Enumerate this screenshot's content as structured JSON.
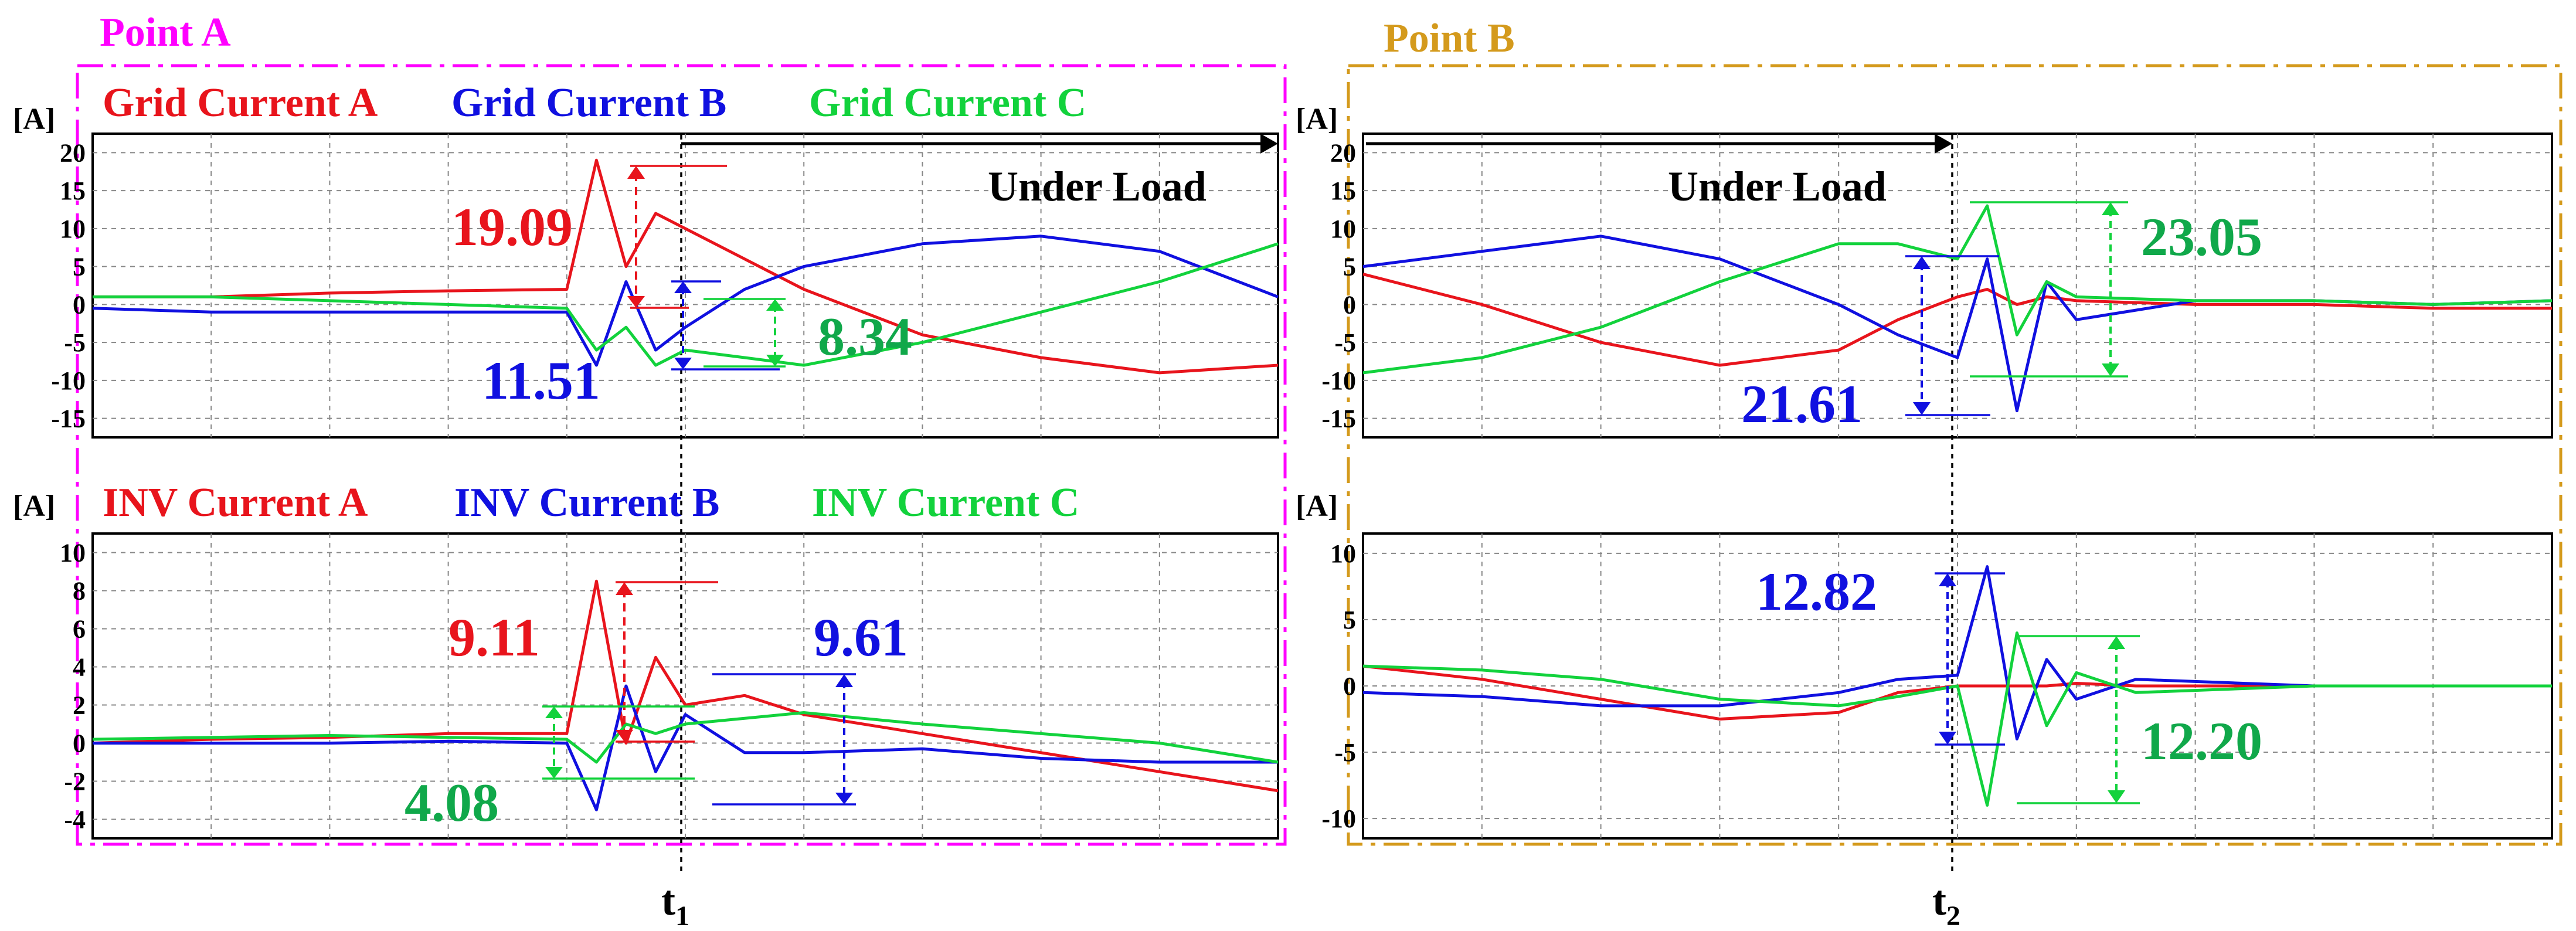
{
  "figure": {
    "t1": "t",
    "t1_sub": "1",
    "t2": "t",
    "t2_sub": "2"
  },
  "colors": {
    "phase_a": "#e8141c",
    "phase_b": "#1010e0",
    "phase_c": "#12d23c",
    "box_a": "#ff00ff",
    "box_b": "#d49a1c",
    "label_a": "#ff00ff",
    "label_b": "#d49a1c",
    "annot_c": "#10a84a"
  },
  "panels": [
    {
      "id": "A",
      "title": "Point A",
      "grid": {
        "unit": "[A]",
        "legend": [
          "Grid Current A",
          "Grid Current B",
          "Grid Current C"
        ],
        "yticks": [
          "20",
          "15",
          "10",
          "5",
          "0",
          "-5",
          "-10",
          "-15"
        ],
        "annotation": "Under Load",
        "values": [
          "19.09",
          "11.51",
          "8.34"
        ]
      },
      "inv": {
        "unit": "[A]",
        "legend": [
          "INV Current A",
          "INV Current B",
          "INV Current C"
        ],
        "yticks": [
          "10",
          "8",
          "6",
          "4",
          "2",
          "0",
          "-2",
          "-4"
        ],
        "values": [
          "9.11",
          "9.61",
          "4.08"
        ]
      }
    },
    {
      "id": "B",
      "title": "Point B",
      "grid": {
        "unit": "[A]",
        "yticks": [
          "20",
          "15",
          "10",
          "5",
          "0",
          "-5",
          "-10",
          "-15"
        ],
        "annotation": "Under Load",
        "values": [
          "23.05",
          "21.61"
        ]
      },
      "inv": {
        "unit": "[A]",
        "yticks": [
          "10",
          "5",
          "0",
          "-5",
          "-10"
        ],
        "values": [
          "12.82",
          "12.20"
        ]
      }
    }
  ],
  "chart_data": [
    {
      "type": "line",
      "panel": "Point A - grid",
      "ylabel": "[A]",
      "ylim": [
        -17.5,
        22.5
      ],
      "yticks": [
        20,
        15,
        10,
        5,
        0,
        -5,
        -10,
        -15
      ],
      "grid": true,
      "legend_position": "top",
      "annotations": [
        "Under Load",
        "19.09",
        "11.51",
        "8.34"
      ],
      "x": [
        0,
        1,
        2,
        3,
        4,
        4.25,
        4.5,
        4.75,
        5,
        5.5,
        6,
        7,
        8,
        9,
        10
      ],
      "series": [
        {
          "name": "Grid Current A",
          "values": [
            1,
            1,
            1.5,
            1.8,
            2,
            19,
            5,
            12,
            10,
            6,
            2,
            -4,
            -7,
            -9,
            -8
          ]
        },
        {
          "name": "Grid Current B",
          "values": [
            -0.5,
            -1,
            -1,
            -1,
            -1,
            -8,
            3,
            -6,
            -3,
            2,
            5,
            8,
            9,
            7,
            1
          ]
        },
        {
          "name": "Grid Current C",
          "values": [
            1,
            1,
            0.5,
            0,
            -0.5,
            -6,
            -3,
            -8,
            -6,
            -7,
            -8,
            -5,
            -1,
            3,
            8
          ]
        }
      ]
    },
    {
      "type": "line",
      "panel": "Point A - INV",
      "ylabel": "[A]",
      "ylim": [
        -5,
        11
      ],
      "yticks": [
        10,
        8,
        6,
        4,
        2,
        0,
        -2,
        -4
      ],
      "grid": true,
      "legend_position": "top",
      "annotations": [
        "9.11",
        "9.61",
        "4.08"
      ],
      "x": [
        0,
        1,
        2,
        3,
        4,
        4.25,
        4.5,
        4.75,
        5,
        5.5,
        6,
        7,
        8,
        9,
        10
      ],
      "series": [
        {
          "name": "INV Current A",
          "values": [
            0,
            0.2,
            0.3,
            0.5,
            0.5,
            8.5,
            0,
            4.5,
            2,
            2.5,
            1.5,
            0.5,
            -0.5,
            -1.5,
            -2.5
          ]
        },
        {
          "name": "INV Current B",
          "values": [
            0,
            0,
            0,
            0.1,
            0,
            -3.5,
            3,
            -1.5,
            1.5,
            -0.5,
            -0.5,
            -0.3,
            -0.8,
            -1,
            -1
          ]
        },
        {
          "name": "INV Current C",
          "values": [
            0.2,
            0.3,
            0.4,
            0.3,
            0.2,
            -1,
            1,
            0.5,
            1,
            1.3,
            1.6,
            1,
            0.5,
            0,
            -1
          ]
        }
      ]
    },
    {
      "type": "line",
      "panel": "Point B - grid",
      "ylabel": "[A]",
      "ylim": [
        -17.5,
        22.5
      ],
      "yticks": [
        20,
        15,
        10,
        5,
        0,
        -5,
        -10,
        -15
      ],
      "grid": true,
      "annotations": [
        "Under Load",
        "23.05",
        "21.61"
      ],
      "x": [
        0,
        1,
        2,
        3,
        4,
        4.5,
        5,
        5.25,
        5.5,
        5.75,
        6,
        7,
        8,
        9,
        10
      ],
      "series": [
        {
          "values": [
            4,
            0,
            -5,
            -8,
            -6,
            -2,
            1,
            2,
            0,
            1,
            0.5,
            0,
            0,
            -0.5,
            -0.5
          ]
        },
        {
          "values": [
            5,
            7,
            9,
            6,
            0,
            -4,
            -7,
            6,
            -14,
            3,
            -2,
            0.5,
            0.5,
            0,
            0.5
          ]
        },
        {
          "values": [
            -9,
            -7,
            -3,
            3,
            8,
            8,
            6,
            13,
            -4,
            3,
            1,
            0.5,
            0.5,
            0,
            0.5
          ]
        }
      ]
    },
    {
      "type": "line",
      "panel": "Point B - INV",
      "ylabel": "[A]",
      "ylim": [
        -11.5,
        11.5
      ],
      "yticks": [
        10,
        5,
        0,
        -5,
        -10
      ],
      "grid": true,
      "annotations": [
        "12.82",
        "12.20"
      ],
      "x": [
        0,
        1,
        2,
        3,
        4,
        4.5,
        5,
        5.25,
        5.5,
        5.75,
        6,
        6.5,
        8,
        9,
        10
      ],
      "series": [
        {
          "values": [
            1.5,
            0.5,
            -1,
            -2.5,
            -2,
            -0.5,
            0,
            0,
            0,
            0,
            0.2,
            0,
            0,
            0,
            0
          ]
        },
        {
          "values": [
            -0.5,
            -0.8,
            -1.5,
            -1.5,
            -0.5,
            0.5,
            0.8,
            9,
            -4,
            2,
            -1,
            0.5,
            0,
            0,
            0
          ]
        },
        {
          "values": [
            1.5,
            1.2,
            0.5,
            -1,
            -1.5,
            -0.8,
            0,
            -9,
            4,
            -3,
            1,
            -0.5,
            0,
            0,
            0
          ]
        }
      ]
    }
  ]
}
